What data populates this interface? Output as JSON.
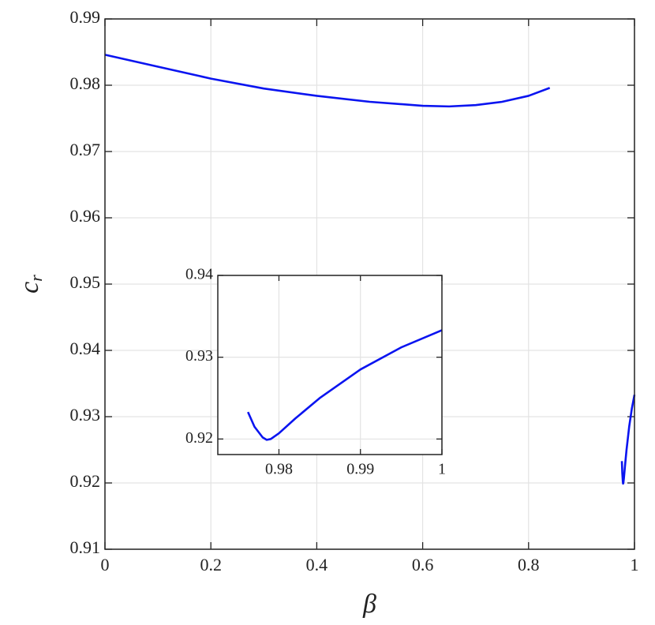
{
  "chart_data": [
    {
      "type": "line",
      "x_label": "β",
      "y_label": "c",
      "y_label_sub": "r",
      "x": [
        0,
        0.1,
        0.2,
        0.3,
        0.4,
        0.5,
        0.6,
        0.65,
        0.7,
        0.75,
        0.8,
        0.84,
        0.9,
        0.9762,
        0.977,
        0.978,
        0.9785,
        0.979,
        0.98,
        0.982,
        0.985,
        0.99,
        0.995,
        1
      ],
      "series": [
        {
          "color": "#0a14f0",
          "values": [
            0.9846,
            0.9828,
            0.981,
            0.9795,
            0.9784,
            0.9775,
            0.9769,
            0.9768,
            0.977,
            0.9775,
            0.9784,
            0.9796,
            null,
            0.9233,
            0.9215,
            0.9202,
            0.9199,
            0.92,
            0.9207,
            0.9225,
            0.925,
            0.9285,
            0.9312,
            0.9333
          ]
        }
      ],
      "xlim": [
        0,
        1
      ],
      "ylim": [
        0.91,
        0.99
      ],
      "xticks": [
        0,
        0.2,
        0.4,
        0.6,
        0.8,
        1
      ],
      "yticks": [
        0.91,
        0.92,
        0.93,
        0.94,
        0.95,
        0.96,
        0.97,
        0.98,
        0.99
      ],
      "grid": true
    },
    {
      "type": "line",
      "x": [
        0.9762,
        0.977,
        0.978,
        0.9785,
        0.979,
        0.98,
        0.982,
        0.985,
        0.99,
        0.995,
        1
      ],
      "series": [
        {
          "color": "#0a14f0",
          "values": [
            0.9233,
            0.9215,
            0.9202,
            0.9199,
            0.92,
            0.9207,
            0.9225,
            0.925,
            0.9285,
            0.9312,
            0.9333
          ]
        }
      ],
      "xlim": [
        0.9725,
        1
      ],
      "ylim": [
        0.9181,
        0.94
      ],
      "xticks": [
        0.98,
        0.99,
        1
      ],
      "yticks": [
        0.92,
        0.93,
        0.94
      ],
      "grid": true
    }
  ]
}
